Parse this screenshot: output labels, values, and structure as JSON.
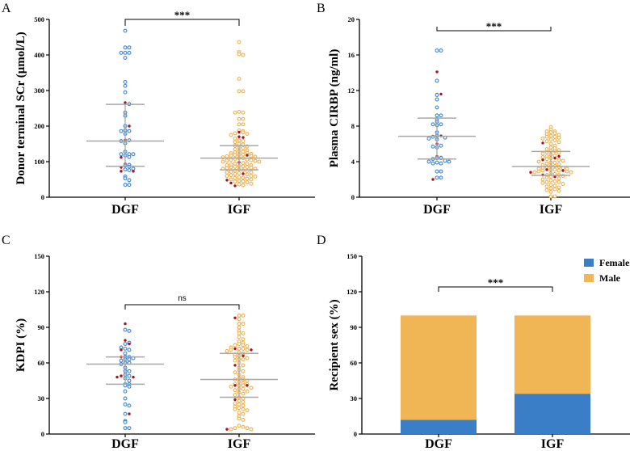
{
  "chart_data": [
    {
      "panel": "A",
      "type": "scatter",
      "ylabel": "Donor terminal SCr (μmol/L)",
      "ylim": [
        0,
        500
      ],
      "yticks": [
        "0",
        "100",
        "200",
        "300",
        "400",
        "500"
      ],
      "categories": [
        "DGF",
        "IGF"
      ],
      "significance": "***",
      "groups": [
        {
          "name": "DGF",
          "color": "#3a86d6",
          "median": 158,
          "q1": 87,
          "q3": 261,
          "values": [
            468,
            421,
            421,
            406,
            406,
            406,
            392,
            324,
            313,
            295,
            262,
            238,
            229,
            200,
            188,
            186,
            186,
            178,
            160,
            158,
            152,
            128,
            121,
            121,
            121,
            117,
            113,
            91,
            89,
            86,
            80,
            78,
            76,
            58,
            53,
            48,
            35,
            35
          ],
          "highlighted": [
            266,
            200,
            161,
            112,
            94,
            84,
            73,
            73
          ]
        },
        {
          "name": "IGF",
          "color": "#f2b04e",
          "median": 110,
          "q1": 77,
          "q3": 145,
          "values": [
            436,
            408,
            402,
            400,
            333,
            298,
            298,
            240,
            238,
            238,
            220,
            220,
            205,
            205,
            188,
            186,
            182,
            180,
            178,
            175,
            165,
            160,
            158,
            155,
            150,
            148,
            145,
            143,
            140,
            138,
            135,
            132,
            130,
            128,
            126,
            125,
            124,
            122,
            120,
            120,
            119,
            117,
            116,
            115,
            114,
            112,
            110,
            110,
            108,
            106,
            105,
            104,
            103,
            102,
            100,
            100,
            96,
            95,
            94,
            92,
            90,
            90,
            88,
            87,
            86,
            85,
            84,
            83,
            82,
            80,
            80,
            78,
            76,
            75,
            74,
            72,
            70,
            70,
            68,
            65,
            64,
            62,
            60,
            60,
            58,
            56,
            55,
            54,
            52,
            50,
            50,
            46,
            45,
            44,
            42,
            38,
            36,
            34
          ],
          "highlighted": [
            183,
            170,
            168,
            118,
            98,
            66,
            48,
            40,
            32
          ]
        }
      ]
    },
    {
      "panel": "B",
      "type": "scatter",
      "ylabel": "Plasma CIRBP (ng/ml)",
      "ylim": [
        0,
        20
      ],
      "yticks": [
        "0",
        "4",
        "8",
        "12",
        "16",
        "20"
      ],
      "categories": [
        "DGF",
        "IGF"
      ],
      "significance": "***",
      "groups": [
        {
          "name": "DGF",
          "color": "#3a86d6",
          "median": 6.85,
          "q1": 4.3,
          "q3": 8.9,
          "values": [
            16.5,
            16.5,
            13.1,
            11.5,
            11.0,
            10.1,
            9.2,
            9.2,
            8.8,
            8.5,
            8.2,
            8.2,
            8.1,
            7.3,
            6.9,
            6.8,
            6.7,
            6.6,
            6.5,
            5.8,
            5.7,
            5.6,
            4.4,
            4.4,
            4.3,
            4.1,
            4.0,
            4.0,
            3.9,
            3.8,
            3.8,
            2.9,
            2.9,
            2.2,
            2.2
          ],
          "highlighted": [
            14.1,
            11.6,
            11.6,
            6.9,
            6.0,
            4.6,
            4.5,
            2.0
          ]
        },
        {
          "name": "IGF",
          "color": "#f2b04e",
          "median": 3.45,
          "q1": 2.45,
          "q3": 5.15,
          "values": [
            7.9,
            7.6,
            7.4,
            7.4,
            7.3,
            7.2,
            7.1,
            7.0,
            6.9,
            6.8,
            6.8,
            6.7,
            6.6,
            6.5,
            6.4,
            6.3,
            6.2,
            6.0,
            5.8,
            5.6,
            5.5,
            5.4,
            5.3,
            5.2,
            5.2,
            5.1,
            5.0,
            4.9,
            4.8,
            4.7,
            4.6,
            4.5,
            4.4,
            4.3,
            4.2,
            4.1,
            4.0,
            3.9,
            3.9,
            3.8,
            3.7,
            3.6,
            3.5,
            3.5,
            3.4,
            3.4,
            3.3,
            3.3,
            3.2,
            3.2,
            3.1,
            3.1,
            3.0,
            3.0,
            2.9,
            2.9,
            2.8,
            2.8,
            2.7,
            2.6,
            2.5,
            2.5,
            2.4,
            2.3,
            2.2,
            2.1,
            2.0,
            1.9,
            1.8,
            1.7,
            1.7,
            1.6,
            1.5,
            1.4,
            1.3,
            1.2,
            1.1,
            1.0,
            0.9,
            0.8,
            0.7,
            0.6,
            0.1,
            0.1
          ],
          "highlighted": [
            6.1,
            4.6,
            4.4,
            4.2,
            3.1,
            3.0,
            2.8,
            2.5,
            2.3
          ]
        }
      ]
    },
    {
      "panel": "C",
      "type": "scatter",
      "ylabel": "KDPI (%)",
      "ylim": [
        0,
        150
      ],
      "yticks": [
        "0",
        "30",
        "60",
        "90",
        "120",
        "150"
      ],
      "categories": [
        "DGF",
        "IGF"
      ],
      "significance": "ns",
      "groups": [
        {
          "name": "DGF",
          "color": "#3a86d6",
          "median": 59,
          "q1": 42,
          "q3": 65,
          "values": [
            88,
            87,
            77,
            76,
            73,
            72,
            71,
            68,
            65,
            65,
            64,
            63,
            63,
            62,
            60,
            60,
            59,
            56,
            53,
            53,
            50,
            49,
            47,
            45,
            42,
            42,
            41,
            40,
            36,
            30,
            25,
            24,
            17,
            11,
            10,
            5,
            5
          ],
          "highlighted": [
            93,
            79,
            76,
            71,
            65,
            49,
            48,
            48,
            17
          ]
        },
        {
          "name": "IGF",
          "color": "#f2b04e",
          "median": 46,
          "q1": 31,
          "q3": 68,
          "values": [
            100,
            100,
            97,
            93,
            93,
            90,
            87,
            85,
            85,
            82,
            80,
            78,
            77,
            76,
            75,
            75,
            74,
            73,
            72,
            72,
            71,
            71,
            70,
            69,
            68,
            67,
            66,
            65,
            64,
            63,
            63,
            62,
            60,
            58,
            56,
            54,
            53,
            52,
            50,
            48,
            47,
            46,
            46,
            45,
            44,
            43,
            42,
            42,
            41,
            41,
            40,
            39,
            38,
            38,
            37,
            36,
            35,
            34,
            33,
            31,
            30,
            28,
            27,
            26,
            25,
            24,
            23,
            22,
            21,
            21,
            20,
            18,
            17,
            15,
            13,
            12,
            7,
            6,
            5,
            5,
            4,
            4
          ],
          "highlighted": [
            98,
            72,
            71,
            66,
            58,
            41,
            41,
            29,
            4
          ]
        }
      ]
    },
    {
      "panel": "D",
      "type": "bar",
      "stacked": true,
      "ylabel": "Recipient sex (%)",
      "ylim": [
        0,
        150
      ],
      "yticks": [
        "0",
        "30",
        "60",
        "90",
        "120",
        "150"
      ],
      "categories": [
        "DGF",
        "IGF"
      ],
      "significance": "***",
      "legend_position": "top-right",
      "series": [
        {
          "name": "Female",
          "color": "#3a7ec8",
          "values": [
            12,
            34
          ]
        },
        {
          "name": "Male",
          "color": "#f0b656",
          "values": [
            88,
            66
          ]
        }
      ]
    }
  ],
  "highlight_color": "#b0101a",
  "summary_line_color": "#a8a8a8"
}
